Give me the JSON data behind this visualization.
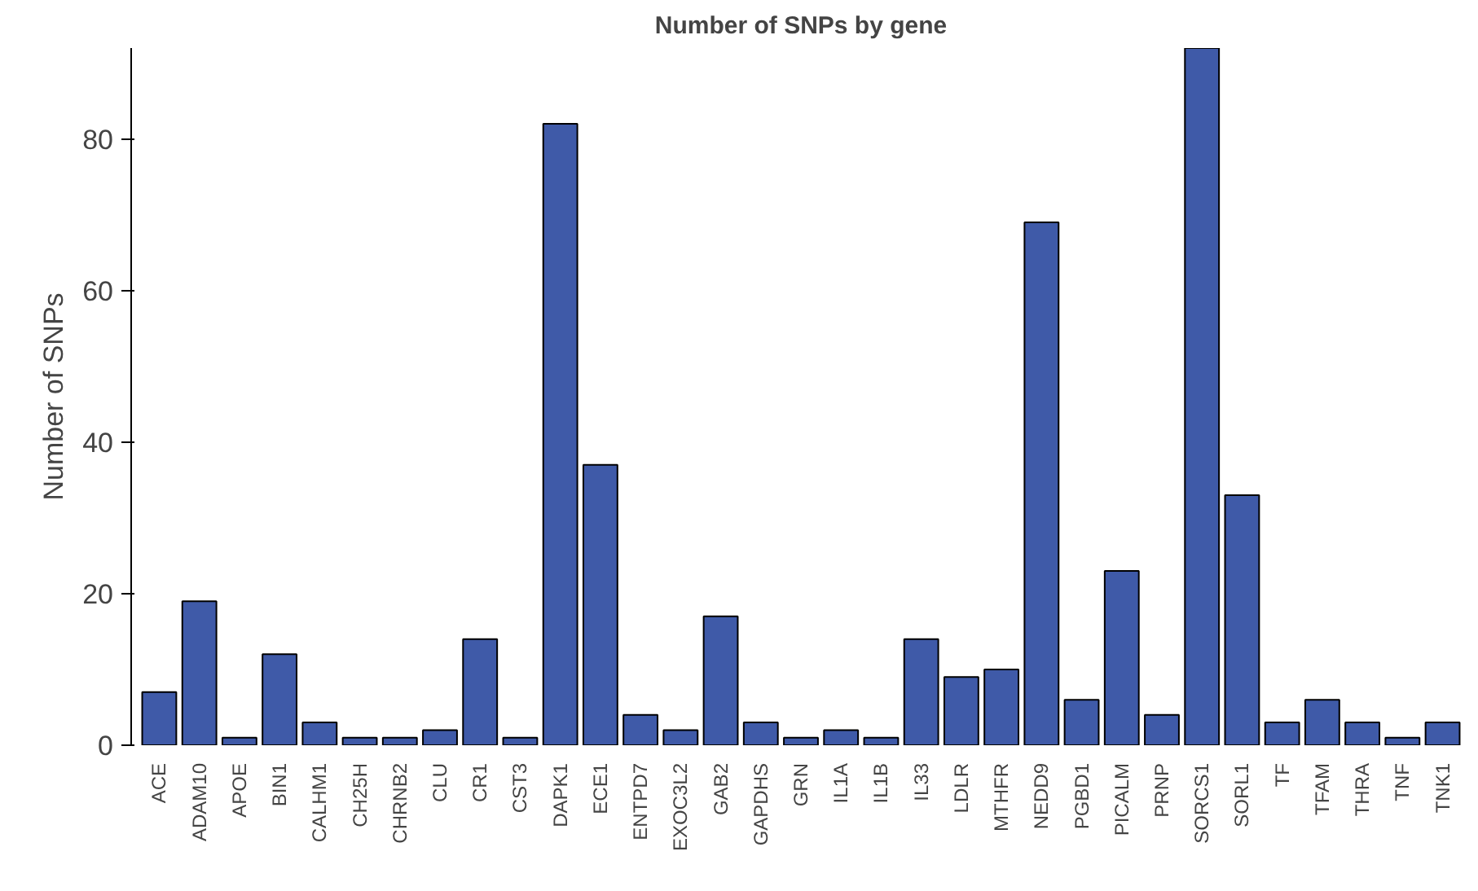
{
  "chart_data": {
    "type": "bar",
    "title": "Number of SNPs by gene",
    "ylabel": "Number of SNPs",
    "categories": [
      "ACE",
      "ADAM10",
      "APOE",
      "BIN1",
      "CALHM1",
      "CH25H",
      "CHRNB2",
      "CLU",
      "CR1",
      "CST3",
      "DAPK1",
      "ECE1",
      "ENTPD7",
      "EXOC3L2",
      "GAB2",
      "GAPDHS",
      "GRN",
      "IL1A",
      "IL1B",
      "IL33",
      "LDLR",
      "MTHFR",
      "NEDD9",
      "PGBD1",
      "PICALM",
      "PRNP",
      "SORCS1",
      "SORL1",
      "TF",
      "TFAM",
      "THRA",
      "TNF",
      "TNK1"
    ],
    "values": [
      7,
      19,
      1,
      12,
      3,
      1,
      1,
      2,
      14,
      1,
      82,
      37,
      4,
      2,
      17,
      3,
      1,
      2,
      1,
      14,
      9,
      10,
      69,
      6,
      23,
      4,
      92,
      33,
      3,
      6,
      3,
      1,
      3
    ],
    "color": "#3f5aa8",
    "ylim": [
      0,
      92
    ],
    "yticks": [
      0,
      20,
      40,
      60,
      80
    ],
    "grid": false
  }
}
